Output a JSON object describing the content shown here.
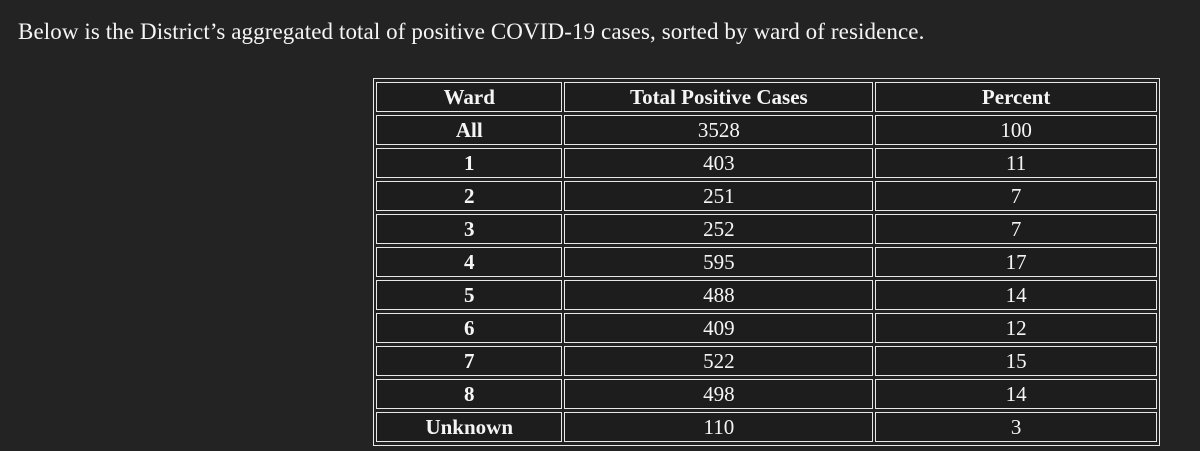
{
  "page": {
    "heading": "Below is the District’s aggregated total of positive COVID-19 cases, sorted by ward of residence.",
    "background_color": "#232323",
    "cell_background_color": "#1d1d1d",
    "border_color": "#e8e8e8",
    "text_color": "#f5f5f5"
  },
  "table": {
    "columns": [
      "Ward",
      "Total Positive Cases",
      "Percent"
    ],
    "rows": [
      {
        "ward": "All",
        "cases": "3528",
        "percent": "100"
      },
      {
        "ward": "1",
        "cases": "403",
        "percent": "11"
      },
      {
        "ward": "2",
        "cases": "251",
        "percent": "7"
      },
      {
        "ward": "3",
        "cases": "252",
        "percent": "7"
      },
      {
        "ward": "4",
        "cases": "595",
        "percent": "17"
      },
      {
        "ward": "5",
        "cases": "488",
        "percent": "14"
      },
      {
        "ward": "6",
        "cases": "409",
        "percent": "12"
      },
      {
        "ward": "7",
        "cases": "522",
        "percent": "15"
      },
      {
        "ward": "8",
        "cases": "498",
        "percent": "14"
      },
      {
        "ward": "Unknown",
        "cases": "110",
        "percent": "3"
      }
    ]
  }
}
